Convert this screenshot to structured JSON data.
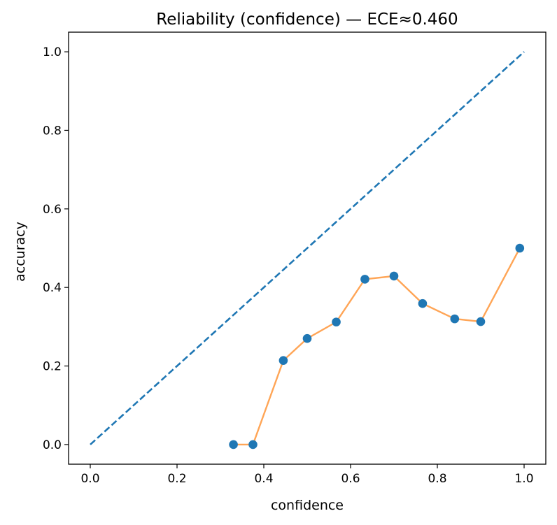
{
  "chart_data": {
    "type": "line",
    "title": "Reliability (confidence)  —  ECE≈0.460",
    "xlabel": "confidence",
    "ylabel": "accuracy",
    "xlim": [
      -0.05,
      1.05
    ],
    "ylim": [
      -0.05,
      1.05
    ],
    "xticks": [
      "0.0",
      "0.2",
      "0.4",
      "0.6",
      "0.8",
      "1.0"
    ],
    "yticks": [
      "0.0",
      "0.2",
      "0.4",
      "0.6",
      "0.8",
      "1.0"
    ],
    "grid": false,
    "series": [
      {
        "style": "dashed",
        "color": "#1f77b4",
        "x": [
          0.0,
          1.0
        ],
        "y": [
          0.0,
          1.0
        ]
      },
      {
        "style": "line-with-markers",
        "line_color": "#ff7f0e",
        "marker_color": "#1f77b4",
        "x": [
          0.33,
          0.375,
          0.445,
          0.5,
          0.567,
          0.633,
          0.7,
          0.766,
          0.84,
          0.9,
          0.99
        ],
        "y": [
          0.0,
          0.0,
          0.214,
          0.27,
          0.312,
          0.421,
          0.429,
          0.359,
          0.32,
          0.313,
          0.5
        ]
      }
    ]
  }
}
